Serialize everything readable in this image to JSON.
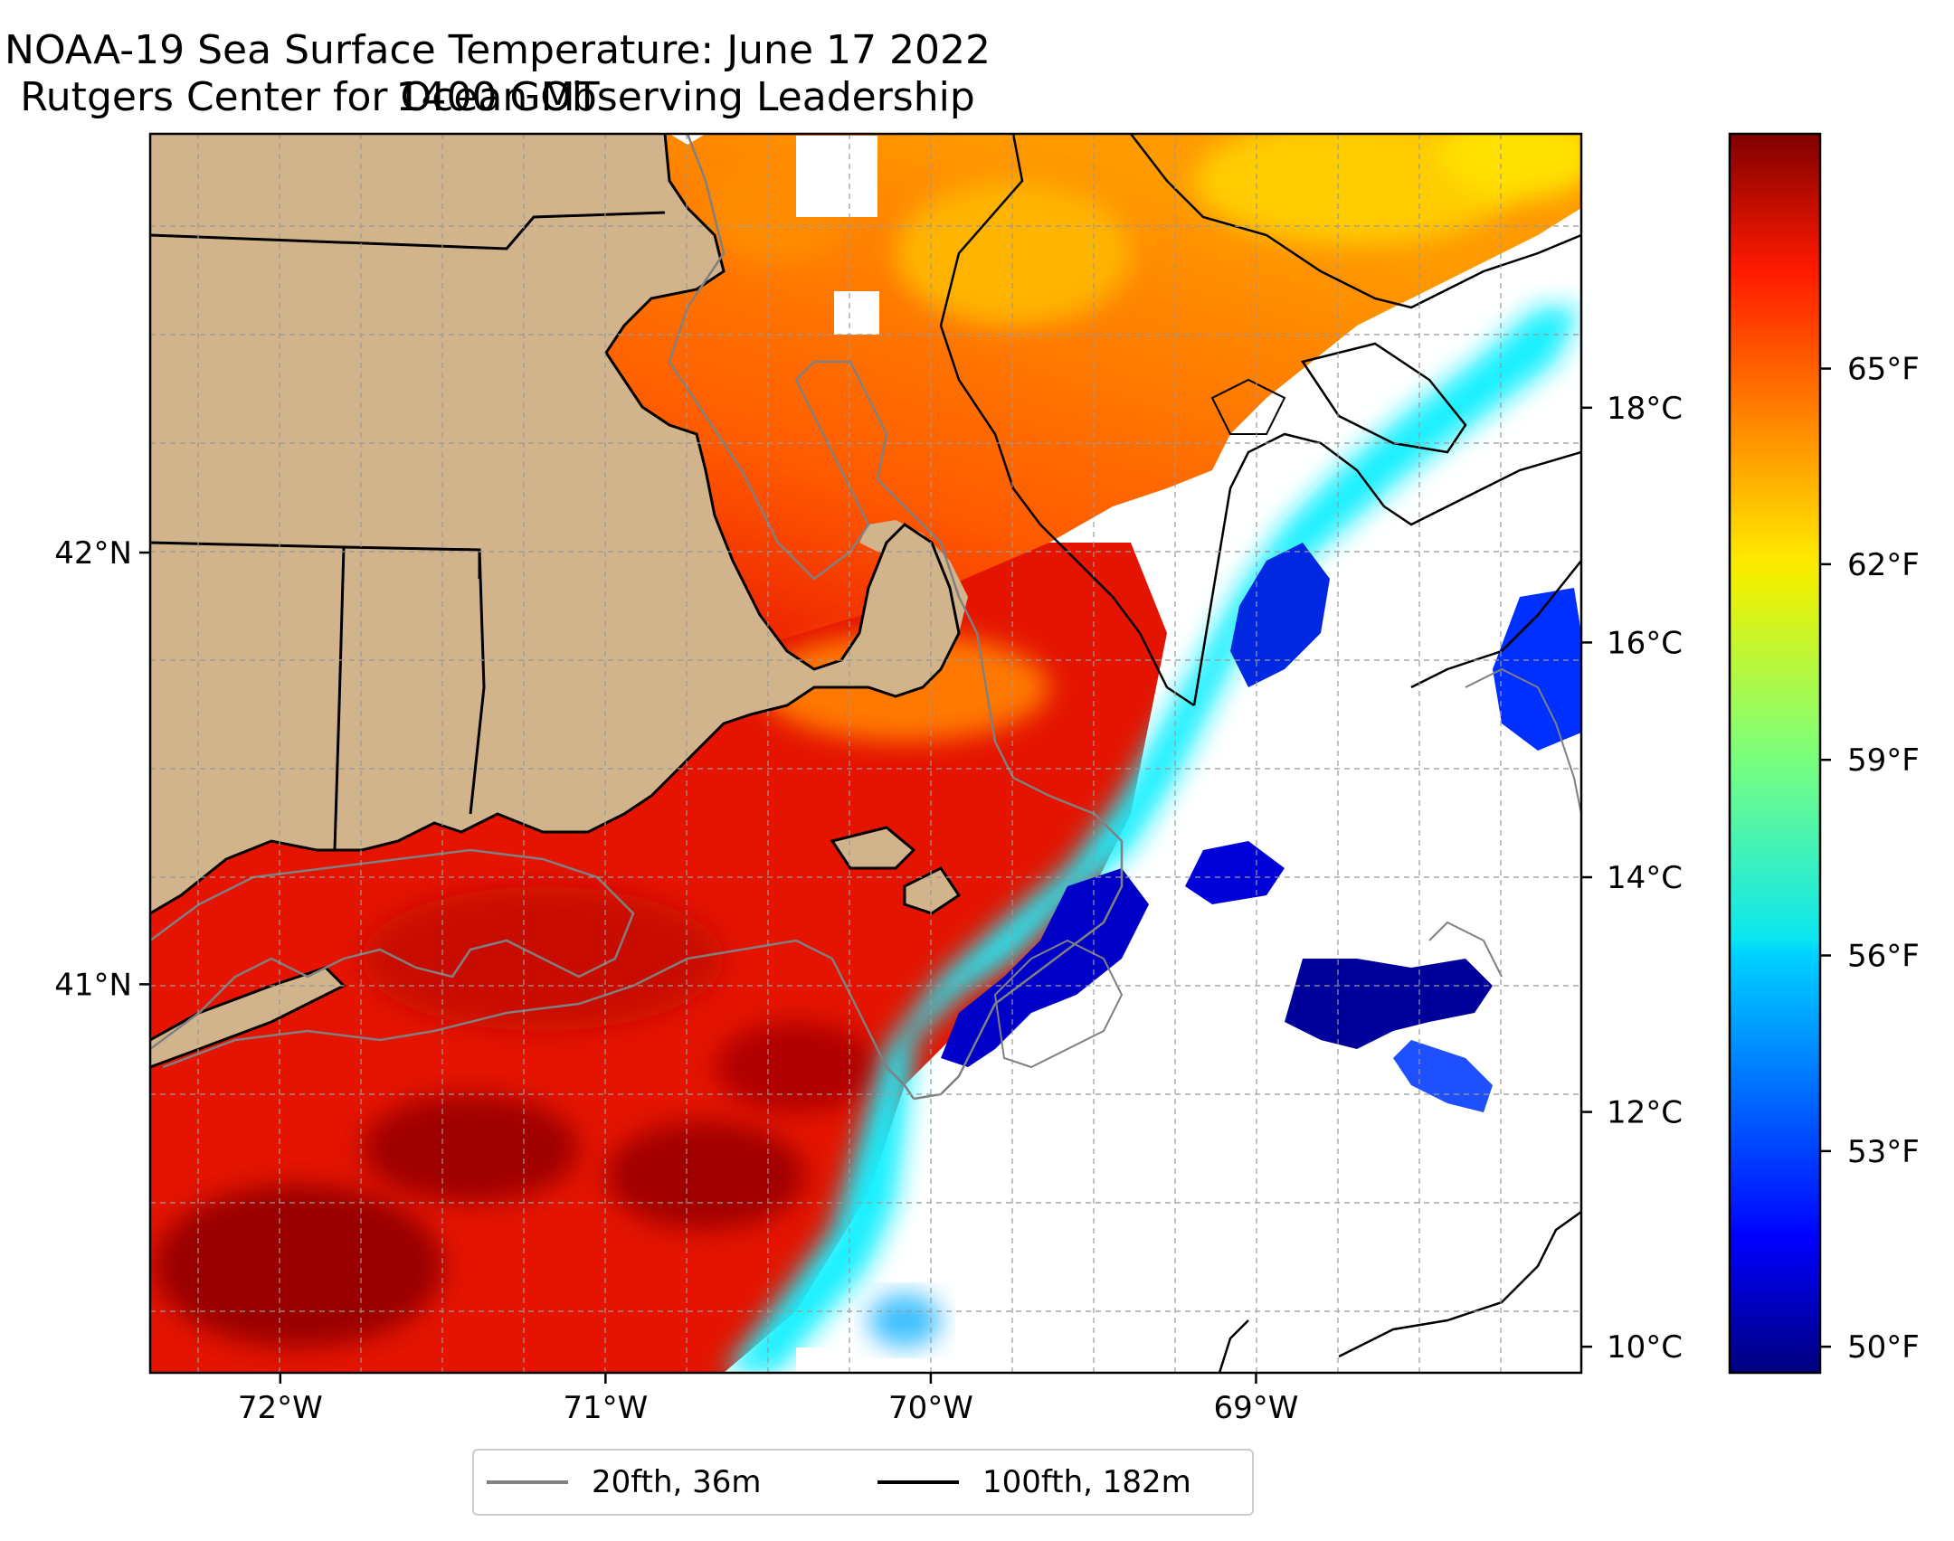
{
  "title": {
    "line1": "NOAA-19 Sea Surface Temperature: June 17 2022 1400 GMT",
    "line2": "Rutgers Center for Ocean Observing Leadership"
  },
  "map": {
    "lon_ticks": [
      {
        "value": -72,
        "label": "72°W"
      },
      {
        "value": -71,
        "label": "71°W"
      },
      {
        "value": -70,
        "label": "70°W"
      },
      {
        "value": -69,
        "label": "69°W"
      }
    ],
    "lat_ticks": [
      {
        "value": 42,
        "label": "42°N"
      },
      {
        "value": 41,
        "label": "41°N"
      }
    ],
    "lon_range": [
      -72.4,
      -68.0
    ],
    "lat_range": [
      40.1,
      42.97
    ],
    "land_color": "#d2b48c",
    "no_data_color": "#ffffff"
  },
  "colorbar": {
    "celsius_labels": [
      {
        "value": 10,
        "label": "10°C"
      },
      {
        "value": 12,
        "label": "12°C"
      },
      {
        "value": 14,
        "label": "14°C"
      },
      {
        "value": 16,
        "label": "16°C"
      },
      {
        "value": 18,
        "label": "18°C"
      }
    ],
    "fahrenheit_labels": [
      {
        "value": 50,
        "label": "50°F"
      },
      {
        "value": 53,
        "label": "53°F"
      },
      {
        "value": 56,
        "label": "56°F"
      },
      {
        "value": 59,
        "label": "59°F"
      },
      {
        "value": 62,
        "label": "62°F"
      },
      {
        "value": 65,
        "label": "65°F"
      }
    ],
    "range_f": [
      49.6,
      68.6
    ],
    "colormap": "jet"
  },
  "legend": {
    "items": [
      {
        "label": "20fth, 36m",
        "color": "#808080"
      },
      {
        "label": "100fth, 182m",
        "color": "#000000"
      }
    ]
  }
}
